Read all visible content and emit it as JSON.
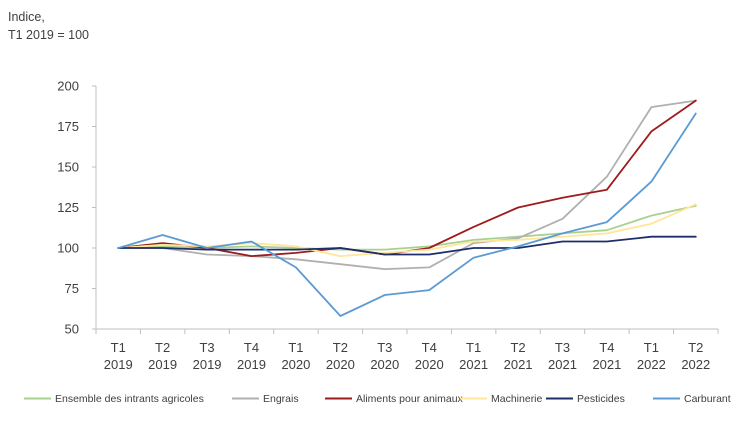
{
  "chart_data": {
    "type": "line",
    "title": "",
    "ylabel_lines": [
      "Indice,",
      "T1 2019 = 100"
    ],
    "xlabel": "",
    "ylim": [
      50,
      200
    ],
    "yticks": [
      50,
      75,
      100,
      125,
      150,
      175,
      200
    ],
    "categories": [
      [
        "T1",
        "2019"
      ],
      [
        "T2",
        "2019"
      ],
      [
        "T3",
        "2019"
      ],
      [
        "T4",
        "2019"
      ],
      [
        "T1",
        "2020"
      ],
      [
        "T2",
        "2020"
      ],
      [
        "T3",
        "2020"
      ],
      [
        "T4",
        "2020"
      ],
      [
        "T1",
        "2021"
      ],
      [
        "T2",
        "2021"
      ],
      [
        "T3",
        "2021"
      ],
      [
        "T4",
        "2021"
      ],
      [
        "T1",
        "2022"
      ],
      [
        "T2",
        "2022"
      ]
    ],
    "grid": false,
    "legend_position": "bottom",
    "series": [
      {
        "name": "Ensemble des intrants agricoles",
        "color": "#a9d18e",
        "values": [
          100,
          101,
          100,
          101,
          100,
          99,
          99,
          101,
          105,
          107,
          109,
          111,
          120,
          126
        ]
      },
      {
        "name": "Engrais",
        "color": "#b0b0b0",
        "values": [
          100,
          100,
          96,
          95,
          93,
          90,
          87,
          88,
          103,
          106,
          118,
          144,
          187,
          191
        ]
      },
      {
        "name": "Aliments pour animaux",
        "color": "#9e1b1b",
        "values": [
          100,
          103,
          100,
          95,
          97,
          100,
          96,
          100,
          113,
          125,
          131,
          136,
          172,
          191
        ]
      },
      {
        "name": "Machinerie",
        "color": "#ffe699",
        "values": [
          100,
          102,
          101,
          103,
          101,
          95,
          97,
          99,
          104,
          105,
          107,
          109,
          115,
          127
        ]
      },
      {
        "name": "Pesticides",
        "color": "#1f2d6b",
        "values": [
          100,
          100,
          99,
          99,
          99,
          100,
          96,
          96,
          100,
          100,
          104,
          104,
          107,
          107
        ]
      },
      {
        "name": "Carburant",
        "color": "#5b9bd5",
        "values": [
          100,
          108,
          100,
          104,
          88,
          58,
          71,
          74,
          94,
          101,
          109,
          116,
          141,
          183
        ]
      }
    ]
  }
}
